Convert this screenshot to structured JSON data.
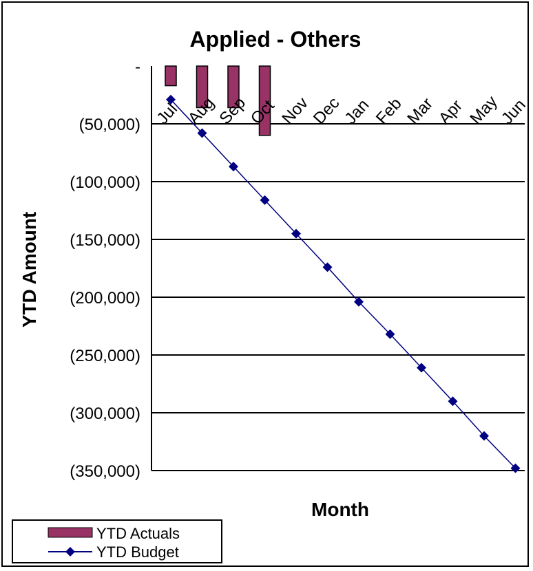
{
  "chart_data": {
    "type": "bar+line",
    "title": "Applied - Others",
    "xlabel": "Month",
    "ylabel": "YTD Amount",
    "categories": [
      "Jul",
      "Aug",
      "Sep",
      "Oct",
      "Nov",
      "Dec",
      "Jan",
      "Feb",
      "Mar",
      "Apr",
      "May",
      "Jun"
    ],
    "ylim": [
      -350000,
      0
    ],
    "yticks": [
      0,
      -50000,
      -100000,
      -150000,
      -200000,
      -250000,
      -300000,
      -350000
    ],
    "ytick_labels": [
      "-",
      "(50,000)",
      "(100,000)",
      "(150,000)",
      "(200,000)",
      "(250,000)",
      "(300,000)",
      "(350,000)"
    ],
    "grid": true,
    "legend_position": "bottom-left",
    "series": [
      {
        "name": "YTD Actuals",
        "kind": "bar",
        "color": "#993366",
        "values": [
          -17000,
          -36000,
          -36000,
          -60000,
          null,
          null,
          null,
          null,
          null,
          null,
          null,
          null
        ]
      },
      {
        "name": "YTD Budget",
        "kind": "line",
        "color": "#000080",
        "marker": "diamond",
        "values": [
          -29000,
          -58000,
          -87000,
          -116000,
          -145000,
          -174000,
          -204000,
          -232000,
          -261000,
          -290000,
          -320000,
          -348000
        ]
      }
    ]
  }
}
